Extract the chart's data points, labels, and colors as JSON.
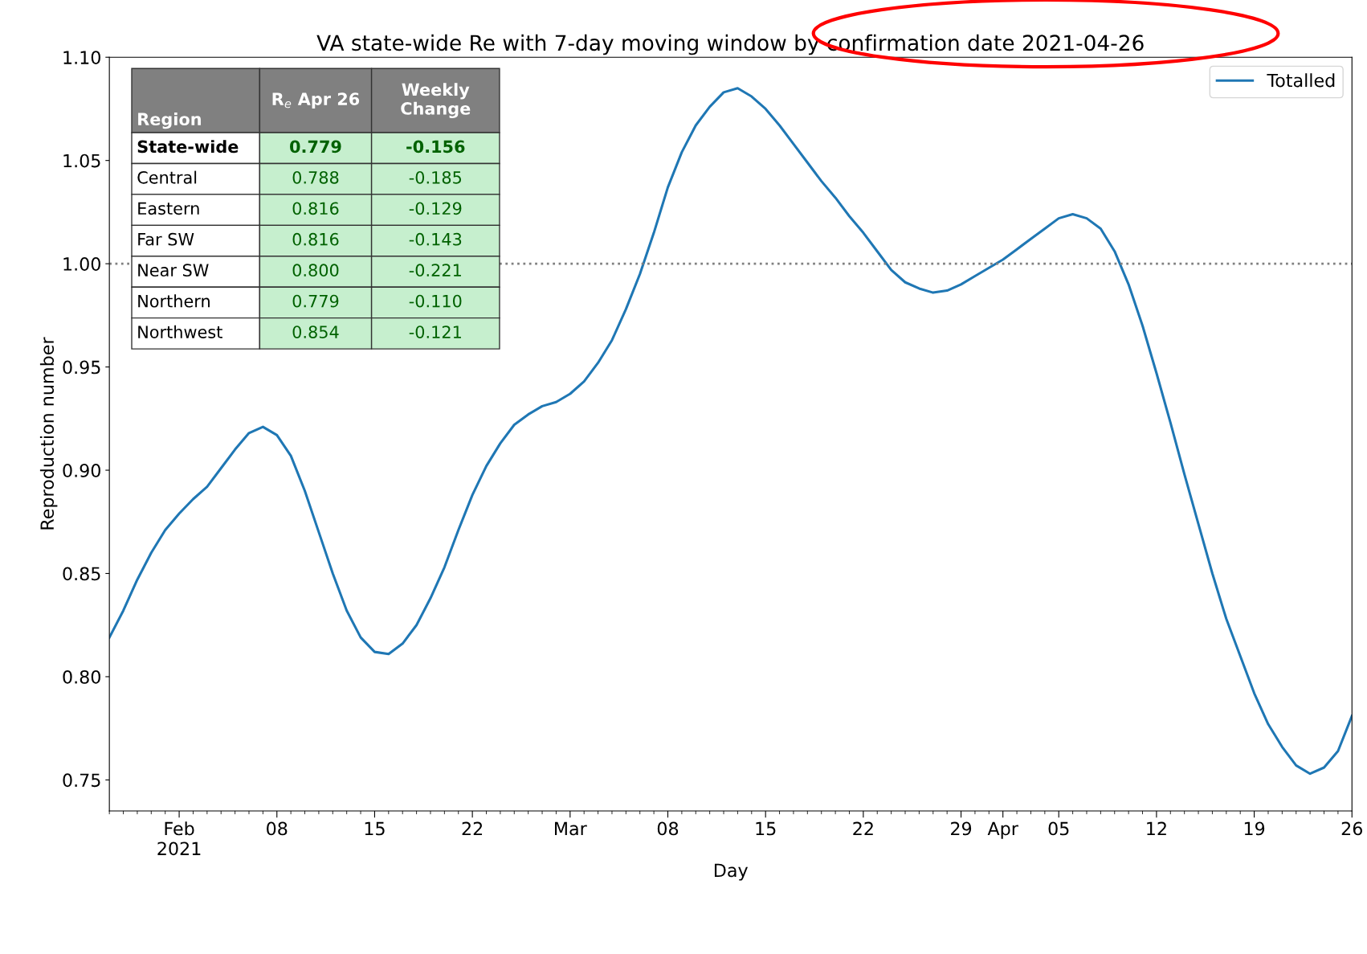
{
  "chart_data": {
    "type": "line",
    "title": "VA state-wide Re with 7-day moving window by confirmation date 2021-04-26",
    "xlabel": "Day",
    "ylabel": "Reproduction number",
    "x": [
      "2021-01-27",
      "2021-01-28",
      "2021-01-29",
      "2021-01-30",
      "2021-01-31",
      "2021-02-01",
      "2021-02-02",
      "2021-02-03",
      "2021-02-04",
      "2021-02-05",
      "2021-02-06",
      "2021-02-07",
      "2021-02-08",
      "2021-02-09",
      "2021-02-10",
      "2021-02-11",
      "2021-02-12",
      "2021-02-13",
      "2021-02-14",
      "2021-02-15",
      "2021-02-16",
      "2021-02-17",
      "2021-02-18",
      "2021-02-19",
      "2021-02-20",
      "2021-02-21",
      "2021-02-22",
      "2021-02-23",
      "2021-02-24",
      "2021-02-25",
      "2021-02-26",
      "2021-02-27",
      "2021-02-28",
      "2021-03-01",
      "2021-03-02",
      "2021-03-03",
      "2021-03-04",
      "2021-03-05",
      "2021-03-06",
      "2021-03-07",
      "2021-03-08",
      "2021-03-09",
      "2021-03-10",
      "2021-03-11",
      "2021-03-12",
      "2021-03-13",
      "2021-03-14",
      "2021-03-15",
      "2021-03-16",
      "2021-03-17",
      "2021-03-18",
      "2021-03-19",
      "2021-03-20",
      "2021-03-21",
      "2021-03-22",
      "2021-03-23",
      "2021-03-24",
      "2021-03-25",
      "2021-03-26",
      "2021-03-27",
      "2021-03-28",
      "2021-03-29",
      "2021-03-30",
      "2021-03-31",
      "2021-04-01",
      "2021-04-02",
      "2021-04-03",
      "2021-04-04",
      "2021-04-05",
      "2021-04-06",
      "2021-04-07",
      "2021-04-08",
      "2021-04-09",
      "2021-04-10",
      "2021-04-11",
      "2021-04-12",
      "2021-04-13",
      "2021-04-14",
      "2021-04-15",
      "2021-04-16",
      "2021-04-17",
      "2021-04-18",
      "2021-04-19",
      "2021-04-20",
      "2021-04-21",
      "2021-04-22",
      "2021-04-23",
      "2021-04-24",
      "2021-04-25",
      "2021-04-26"
    ],
    "series": [
      {
        "name": "Totalled",
        "color": "#1f77b4",
        "values": [
          0.819,
          0.832,
          0.847,
          0.86,
          0.871,
          0.879,
          0.886,
          0.892,
          0.901,
          0.91,
          0.918,
          0.921,
          0.917,
          0.907,
          0.89,
          0.87,
          0.85,
          0.832,
          0.819,
          0.812,
          0.811,
          0.816,
          0.825,
          0.838,
          0.853,
          0.871,
          0.888,
          0.902,
          0.913,
          0.922,
          0.927,
          0.931,
          0.933,
          0.937,
          0.943,
          0.952,
          0.963,
          0.978,
          0.995,
          1.015,
          1.037,
          1.054,
          1.067,
          1.076,
          1.083,
          1.085,
          1.081,
          1.075,
          1.067,
          1.058,
          1.049,
          1.04,
          1.032,
          1.023,
          1.015,
          1.006,
          0.997,
          0.991,
          0.988,
          0.986,
          0.987,
          0.99,
          0.994,
          0.998,
          1.002,
          1.007,
          1.012,
          1.017,
          1.022,
          1.024,
          1.022,
          1.017,
          1.006,
          0.99,
          0.97,
          0.947,
          0.923,
          0.898,
          0.874,
          0.85,
          0.828,
          0.81,
          0.792,
          0.777,
          0.766,
          0.757,
          0.753,
          0.756,
          0.764,
          0.781
        ]
      }
    ],
    "xlim": [
      "2021-01-27",
      "2021-04-26"
    ],
    "xticks": [
      {
        "value": "2021-02-01",
        "label": "Feb\n2021"
      },
      {
        "value": "2021-02-08",
        "label": "08"
      },
      {
        "value": "2021-02-15",
        "label": "15"
      },
      {
        "value": "2021-02-22",
        "label": "22"
      },
      {
        "value": "2021-03-01",
        "label": "Mar"
      },
      {
        "value": "2021-03-08",
        "label": "08"
      },
      {
        "value": "2021-03-15",
        "label": "15"
      },
      {
        "value": "2021-03-22",
        "label": "22"
      },
      {
        "value": "2021-03-29",
        "label": "29"
      },
      {
        "value": "2021-04-01",
        "label": "Apr"
      },
      {
        "value": "2021-04-05",
        "label": "05"
      },
      {
        "value": "2021-04-12",
        "label": "12"
      },
      {
        "value": "2021-04-19",
        "label": "19"
      },
      {
        "value": "2021-04-26",
        "label": "26"
      }
    ],
    "ylim": [
      0.735,
      1.1
    ],
    "yticks": [
      {
        "value": 0.75,
        "label": "0.75"
      },
      {
        "value": 0.8,
        "label": "0.80"
      },
      {
        "value": 0.85,
        "label": "0.85"
      },
      {
        "value": 0.9,
        "label": "0.90"
      },
      {
        "value": 0.95,
        "label": "0.95"
      },
      {
        "value": 1.0,
        "label": "1.00"
      },
      {
        "value": 1.05,
        "label": "1.05"
      },
      {
        "value": 1.1,
        "label": "1.10"
      }
    ],
    "ref_lines": [
      {
        "axis": "y",
        "value": 1.0,
        "color": "#808080",
        "line_style": "dotted"
      }
    ],
    "legend": "top right",
    "grid": false,
    "marker": "none",
    "line_style": "solid",
    "annotations": [
      "Region",
      "R$_{e}$ Apr 26",
      "Weekly Change",
      "State-wide",
      "0.779",
      "-0.156",
      "Central",
      "0.788",
      "-0.185",
      "Eastern",
      "0.816",
      "-0.129",
      "Far SW",
      "0.816",
      "-0.143",
      "Near SW",
      "0.800",
      "-0.221",
      "Northern",
      "0.779",
      "-0.110",
      "Northwest",
      "0.854",
      "-0.121"
    ]
  }
}
